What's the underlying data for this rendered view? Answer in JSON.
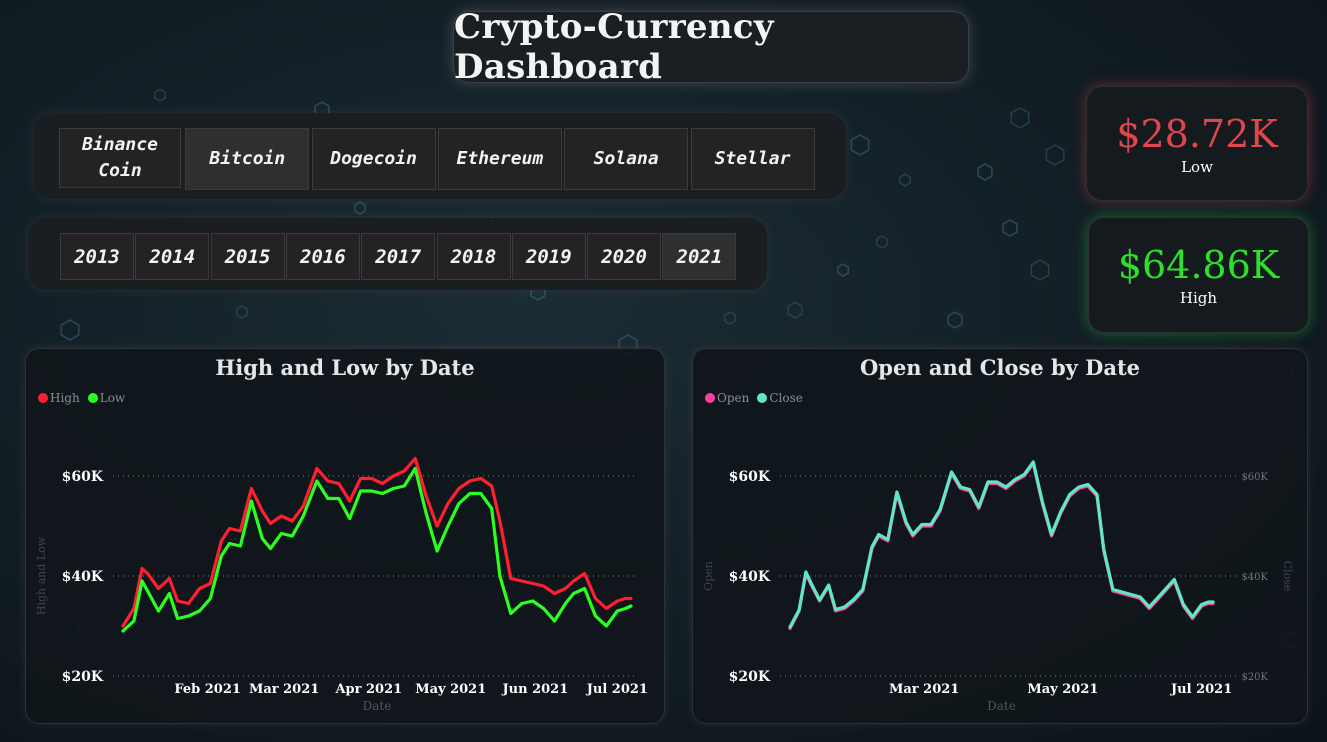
{
  "title": "Crypto-Currency Dashboard",
  "coins": [
    "Binance Coin",
    "Bitcoin",
    "Dogecoin",
    "Ethereum",
    "Solana",
    "Stellar"
  ],
  "selected_coin": "Bitcoin",
  "years": [
    "2013",
    "2014",
    "2015",
    "2016",
    "2017",
    "2018",
    "2019",
    "2020",
    "2021"
  ],
  "selected_year": "2021",
  "kpi": {
    "low": {
      "value": "$28.72K",
      "label": "Low",
      "color": "#e0474c"
    },
    "high": {
      "value": "$64.86K",
      "label": "High",
      "color": "#2fe02a"
    }
  },
  "chart_data": [
    {
      "type": "line",
      "title": "High and Low by Date",
      "xlabel": "Date",
      "ylabel": "High and Low",
      "legend_position": "top-left",
      "grid": true,
      "ylim": [
        20000,
        60000
      ],
      "yticks": [
        "$20K",
        "$40K",
        "$60K"
      ],
      "xticks": [
        "Feb 2021",
        "Mar 2021",
        "Apr 2021",
        "May 2021",
        "Jun 2021",
        "Jul 2021"
      ],
      "x_range": [
        "2021-01-01",
        "2021-07-06"
      ],
      "series": [
        {
          "name": "High",
          "color": "#ff1f2f",
          "x": [
            "2021-01-01",
            "2021-01-05",
            "2021-01-08",
            "2021-01-10",
            "2021-01-14",
            "2021-01-18",
            "2021-01-21",
            "2021-01-25",
            "2021-01-29",
            "2021-02-02",
            "2021-02-06",
            "2021-02-09",
            "2021-02-13",
            "2021-02-17",
            "2021-02-21",
            "2021-02-24",
            "2021-02-28",
            "2021-03-04",
            "2021-03-08",
            "2021-03-13",
            "2021-03-17",
            "2021-03-21",
            "2021-03-25",
            "2021-03-29",
            "2021-04-02",
            "2021-04-06",
            "2021-04-10",
            "2021-04-14",
            "2021-04-18",
            "2021-04-22",
            "2021-04-26",
            "2021-04-30",
            "2021-05-04",
            "2021-05-08",
            "2021-05-12",
            "2021-05-16",
            "2021-05-19",
            "2021-05-23",
            "2021-05-27",
            "2021-05-31",
            "2021-06-04",
            "2021-06-08",
            "2021-06-12",
            "2021-06-15",
            "2021-06-19",
            "2021-06-23",
            "2021-06-27",
            "2021-07-01",
            "2021-07-04",
            "2021-07-06"
          ],
          "values": [
            30000,
            33500,
            41500,
            40500,
            37500,
            39500,
            35000,
            34500,
            37500,
            38500,
            47000,
            49500,
            49000,
            57500,
            53000,
            50500,
            52000,
            51000,
            54000,
            61500,
            59000,
            58500,
            55000,
            59500,
            59500,
            58500,
            60000,
            61000,
            63500,
            56000,
            50000,
            54500,
            57500,
            59000,
            59500,
            58000,
            51000,
            39500,
            39000,
            38500,
            38000,
            36500,
            37500,
            39000,
            40500,
            35500,
            33500,
            35000,
            35500,
            35500
          ]
        },
        {
          "name": "Low",
          "color": "#2cff20",
          "x": [
            "2021-01-01",
            "2021-01-05",
            "2021-01-08",
            "2021-01-10",
            "2021-01-14",
            "2021-01-18",
            "2021-01-21",
            "2021-01-25",
            "2021-01-29",
            "2021-02-02",
            "2021-02-06",
            "2021-02-09",
            "2021-02-13",
            "2021-02-17",
            "2021-02-21",
            "2021-02-24",
            "2021-02-28",
            "2021-03-04",
            "2021-03-08",
            "2021-03-13",
            "2021-03-17",
            "2021-03-21",
            "2021-03-25",
            "2021-03-29",
            "2021-04-02",
            "2021-04-06",
            "2021-04-10",
            "2021-04-14",
            "2021-04-18",
            "2021-04-22",
            "2021-04-26",
            "2021-04-30",
            "2021-05-04",
            "2021-05-08",
            "2021-05-12",
            "2021-05-16",
            "2021-05-19",
            "2021-05-23",
            "2021-05-27",
            "2021-05-31",
            "2021-06-04",
            "2021-06-08",
            "2021-06-12",
            "2021-06-15",
            "2021-06-19",
            "2021-06-23",
            "2021-06-27",
            "2021-07-01",
            "2021-07-04",
            "2021-07-06"
          ],
          "values": [
            29000,
            31000,
            39000,
            37000,
            33000,
            36500,
            31500,
            32000,
            33000,
            35500,
            44000,
            46500,
            46000,
            55000,
            47500,
            45500,
            48500,
            48000,
            52000,
            59000,
            55500,
            55500,
            51500,
            57000,
            57000,
            56500,
            57500,
            58000,
            61500,
            52500,
            45000,
            50000,
            54500,
            56500,
            56500,
            53500,
            40000,
            32500,
            34500,
            35000,
            33500,
            31000,
            34500,
            36500,
            37500,
            32000,
            30000,
            33000,
            33500,
            34000
          ]
        }
      ]
    },
    {
      "type": "line",
      "title": "Open and Close by Date",
      "xlabel": "Date",
      "ylabel": "Open",
      "ylabel_right": "Close",
      "legend_position": "top-left",
      "grid": true,
      "ylim": [
        20000,
        60000
      ],
      "yticks": [
        "$20K",
        "$40K",
        "$60K"
      ],
      "yticks_right": [
        "$20K",
        "$40K",
        "$60K"
      ],
      "xticks": [
        "Mar 2021",
        "May 2021",
        "Jul 2021"
      ],
      "x_range": [
        "2021-01-01",
        "2021-07-06"
      ],
      "series": [
        {
          "name": "Open",
          "color": "#ff3fa4",
          "x": [
            "2021-01-01",
            "2021-01-05",
            "2021-01-08",
            "2021-01-10",
            "2021-01-14",
            "2021-01-18",
            "2021-01-21",
            "2021-01-25",
            "2021-01-29",
            "2021-02-02",
            "2021-02-06",
            "2021-02-09",
            "2021-02-13",
            "2021-02-17",
            "2021-02-21",
            "2021-02-24",
            "2021-02-28",
            "2021-03-04",
            "2021-03-08",
            "2021-03-13",
            "2021-03-17",
            "2021-03-21",
            "2021-03-25",
            "2021-03-29",
            "2021-04-02",
            "2021-04-06",
            "2021-04-10",
            "2021-04-14",
            "2021-04-18",
            "2021-04-22",
            "2021-04-26",
            "2021-04-30",
            "2021-05-04",
            "2021-05-08",
            "2021-05-12",
            "2021-05-16",
            "2021-05-19",
            "2021-05-23",
            "2021-05-27",
            "2021-05-31",
            "2021-06-04",
            "2021-06-08",
            "2021-06-12",
            "2021-06-15",
            "2021-06-19",
            "2021-06-23",
            "2021-06-27",
            "2021-07-01",
            "2021-07-04",
            "2021-07-06"
          ],
          "values": [
            29500,
            33000,
            40500,
            38500,
            35000,
            38000,
            33000,
            33500,
            35000,
            37000,
            45500,
            48000,
            47000,
            56500,
            50500,
            48000,
            50000,
            50000,
            53000,
            60500,
            57500,
            57000,
            53500,
            58500,
            58500,
            57500,
            59000,
            60000,
            62500,
            54500,
            48000,
            52500,
            56000,
            57500,
            58000,
            56000,
            45000,
            37000,
            36500,
            36000,
            35500,
            33500,
            35500,
            37000,
            39000,
            34000,
            31500,
            34000,
            34500,
            34500
          ]
        },
        {
          "name": "Close",
          "color": "#5fe8c8",
          "x": [
            "2021-01-01",
            "2021-01-05",
            "2021-01-08",
            "2021-01-10",
            "2021-01-14",
            "2021-01-18",
            "2021-01-21",
            "2021-01-25",
            "2021-01-29",
            "2021-02-02",
            "2021-02-06",
            "2021-02-09",
            "2021-02-13",
            "2021-02-17",
            "2021-02-21",
            "2021-02-24",
            "2021-02-28",
            "2021-03-04",
            "2021-03-08",
            "2021-03-13",
            "2021-03-17",
            "2021-03-21",
            "2021-03-25",
            "2021-03-29",
            "2021-04-02",
            "2021-04-06",
            "2021-04-10",
            "2021-04-14",
            "2021-04-18",
            "2021-04-22",
            "2021-04-26",
            "2021-04-30",
            "2021-05-04",
            "2021-05-08",
            "2021-05-12",
            "2021-05-16",
            "2021-05-19",
            "2021-05-23",
            "2021-05-27",
            "2021-05-31",
            "2021-06-04",
            "2021-06-08",
            "2021-06-12",
            "2021-06-15",
            "2021-06-19",
            "2021-06-23",
            "2021-06-27",
            "2021-07-01",
            "2021-07-04",
            "2021-07-06"
          ],
          "values": [
            29800,
            33200,
            40800,
            38800,
            35200,
            38200,
            33300,
            33800,
            35300,
            37300,
            45800,
            48300,
            47300,
            56800,
            50800,
            48300,
            50300,
            50300,
            53300,
            60800,
            57800,
            57300,
            53800,
            58800,
            58800,
            57800,
            59300,
            60300,
            62800,
            54800,
            48300,
            52800,
            56300,
            57800,
            58300,
            56300,
            45300,
            37300,
            36800,
            36300,
            35800,
            33800,
            35800,
            37300,
            39300,
            34300,
            31800,
            34300,
            34800,
            34800
          ]
        }
      ]
    }
  ]
}
